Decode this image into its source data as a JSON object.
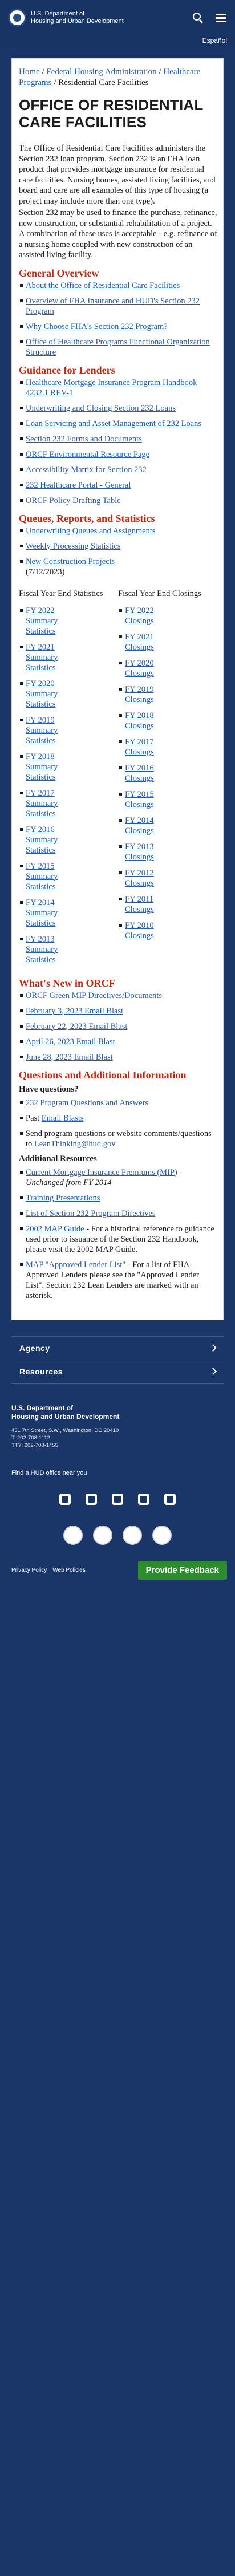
{
  "header": {
    "org_line1": "U.S. Department of",
    "org_line2": "Housing and Urban Development",
    "language_link": "Español",
    "icons": [
      "search-icon",
      "menu-icon"
    ]
  },
  "breadcrumb": {
    "home": "Home",
    "sep": " / ",
    "federal_housing": "Federal Housing Administration",
    "healthcare": "Healthcare Programs",
    "current": "Residential Care Facilities"
  },
  "page_title": "OFFICE OF RESIDENTIAL CARE FACILITIES",
  "intro": {
    "p1": "The Office of Residential Care Facilities administers the Section 232 loan program. Section 232 is an FHA loan product that provides mortgage insurance for residential care facilities. Nursing homes, assisted living facilities, and board and care are all examples of this type of housing (a project may include more than one type).",
    "p2": "Section 232 may be used to finance the purchase, refinance, new construction, or substantial rehabilitation of a project. A combination of these uses is acceptable - e.g. refinance of a nursing home coupled with new construction of an assisted living facility."
  },
  "general_overview": {
    "title": "General Overview",
    "items": [
      "About the Office of Residential Care Facilities",
      "Overview of FHA Insurance and HUD's Section 232 Program",
      "Why Choose FHA's Section 232 Program?",
      "Office of Healthcare Programs Functional Organization Structure"
    ]
  },
  "guidance": {
    "title": "Guidance for Lenders",
    "items": [
      "Healthcare Mortgage Insurance Program Handbook 4232.1 REV-1",
      "Underwriting and Closing Section 232 Loans",
      "Loan Servicing and Asset Management of 232 Loans",
      "Section 232 Forms and Documents",
      "ORCF Environmental Resource Page",
      "Accessibility Matrix for Section 232",
      "232 Healthcare Portal - General",
      "ORCF Policy Drafting Table"
    ]
  },
  "queues": {
    "title": "Queues, Reports, and Statistics",
    "items": [
      "Underwriting Queues and Assignments",
      "Weekly Processing Statistics"
    ],
    "new_construction_link": "New Construction Projects",
    "new_construction_date": "(7/12/2023)"
  },
  "statistics": {
    "left_head": "Fiscal Year End Statistics",
    "right_head": "Fiscal Year End Closings",
    "left": [
      "FY 2022 Summary Statistics",
      "FY 2021 Summary Statistics",
      "FY 2020 Summary Statistics",
      "FY 2019 Summary Statistics",
      "FY 2018 Summary Statistics",
      "FY 2017 Summary Statistics",
      "FY 2016 Summary Statistics",
      "FY 2015 Summary Statistics",
      "FY 2014 Summary Statistics",
      "FY 2013 Summary Statistics"
    ],
    "right": [
      "FY 2022 Closings",
      "FY 2021 Closings",
      "FY 2020 Closings",
      "FY 2019 Closings",
      "FY 2018 Closings",
      "FY 2017 Closings",
      "FY 2016 Closings",
      "FY 2015 Closings",
      "FY 2014 Closings",
      "FY 2013 Closings",
      "FY 2012 Closings",
      "FY 2011 Closings",
      "FY 2010 Closings"
    ]
  },
  "whats_new": {
    "title": "What's New in ORCF",
    "items": [
      "ORCF Green MIP Directives/Documents",
      "February 3, 2023 Email Blast",
      "February 22, 2023 Email Blast",
      "April 26, 2023 Email Blast",
      "June 28, 2023 Email Blast"
    ]
  },
  "questions": {
    "title": "Questions and Additional Information",
    "have_questions": "Have questions?",
    "program_questions": "232 Program Questions and Answers",
    "past_prefix": "Past ",
    "email_blasts": "Email Blasts",
    "send_text": "Send program questions or website comments/questions to ",
    "email": "LeanThinking@hud.gov",
    "additional": "Additional Resources",
    "mip_link": "Current Mortgage Insurance Premiums (MIP)",
    "mip_suffix": " - Unchanged from FY 2014",
    "training": "Training Presentations",
    "directives": "List of Section 232 Program Directives",
    "map_guide_link": "2002 MAP Guide",
    "map_guide_text": " - For a historical reference to guidance used prior to issuance of the Section 232 Handbook, please visit the 2002 MAP Guide.",
    "lender_list_link": "MAP \"Approved Lender List\"",
    "lender_list_text": " - For a list of FHA-Approved Lenders please see the \"Approved Lender List\". Section 232 Lean Lenders are marked with an asterisk."
  },
  "footer": {
    "agency": "Agency",
    "resources": "Resources",
    "org_line1": "U.S. Department of",
    "org_line2": "Housing and Urban Development",
    "address": "451 7th Street, S.W., Washington, DC 20410",
    "phone": "T: 202-708-1112",
    "tty": "TTY: 202-708-1455",
    "find": "Find a HUD office near you",
    "social_icons": [
      "twitter-icon",
      "facebook-icon",
      "instagram-icon",
      "youtube-icon",
      "rss-icon"
    ],
    "privacy": "Privacy Policy",
    "web_policies": "Web Policies",
    "feedback": "Provide Feedback"
  }
}
